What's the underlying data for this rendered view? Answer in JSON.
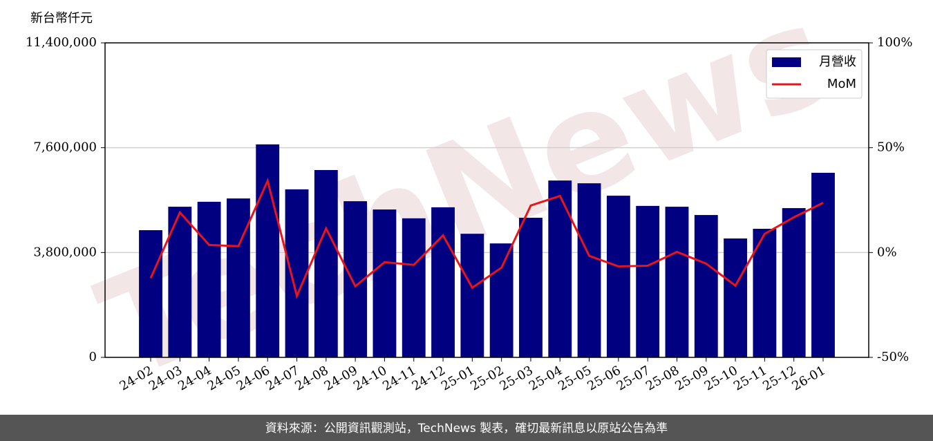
{
  "chart_data": {
    "type": "bar",
    "y_label": "新台幣仟元",
    "watermark": "TechNews",
    "source": "資料來源：公開資訊觀測站，TechNews 製表，確切最新訊息以原站公告為準",
    "categories": [
      "24-02",
      "24-03",
      "24-04",
      "24-05",
      "24-06",
      "24-07",
      "24-08",
      "24-09",
      "24-10",
      "24-11",
      "24-12",
      "25-01",
      "25-02",
      "25-03",
      "25-04",
      "25-05",
      "25-06",
      "25-07",
      "25-08",
      "25-09",
      "25-10",
      "25-11",
      "25-12",
      "26-01"
    ],
    "series": [
      {
        "name": "月營收",
        "color": "#000080",
        "values": [
          4610000,
          5460000,
          5640000,
          5760000,
          7720000,
          6090000,
          6790000,
          5660000,
          5360000,
          5040000,
          5440000,
          4480000,
          4130000,
          5060000,
          6410000,
          6310000,
          5860000,
          5490000,
          5460000,
          5160000,
          4310000,
          4660000,
          5410000,
          6690000
        ]
      },
      {
        "name": "MoM",
        "color": "#e8141b",
        "type": "line",
        "axis": "y2",
        "values": [
          -12.2,
          19.1,
          3.6,
          3.0,
          34.2,
          -20.7,
          11.5,
          -16.1,
          -4.6,
          -5.9,
          8.2,
          -16.8,
          -7.2,
          22.4,
          27.0,
          -1.6,
          -6.6,
          -6.3,
          0.3,
          -5.3,
          -15.8,
          8.9,
          16.8,
          23.7
        ]
      }
    ],
    "ylim": [
      0,
      11400000
    ],
    "yticks": [
      0,
      {
        "value": 3800000,
        "label": "3,800,000"
      },
      {
        "value": 7600000,
        "label": "7,600,000"
      },
      {
        "value": 11400000,
        "label": "11,400,000"
      }
    ],
    "y2lim": [
      -50,
      100
    ],
    "y2ticks": [
      {
        "value": -50,
        "label": "-50%"
      },
      {
        "value": 0,
        "label": "0%"
      },
      {
        "value": 50,
        "label": "50%"
      },
      {
        "value": 100,
        "label": "100%"
      }
    ],
    "grid": true,
    "legend": "upper right"
  }
}
